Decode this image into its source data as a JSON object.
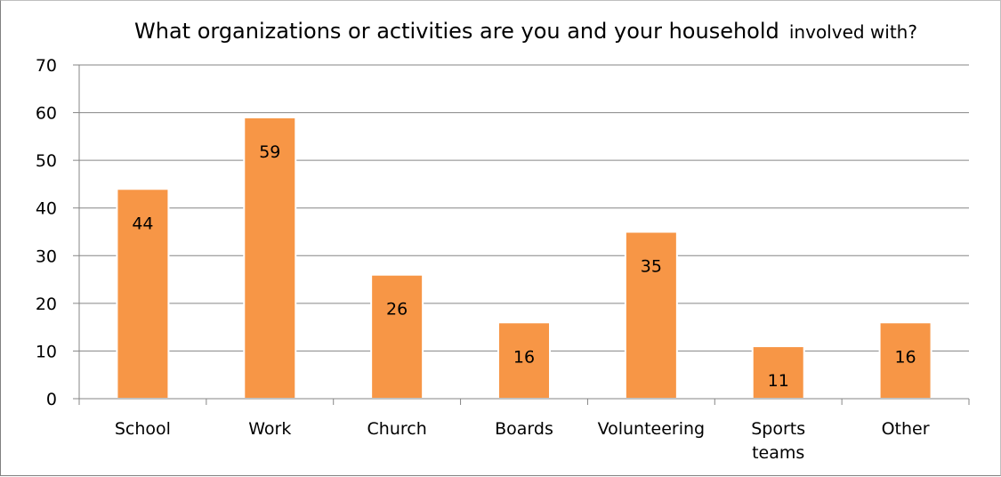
{
  "chart_data": {
    "type": "bar",
    "title": "What organizations or activities are you and your household",
    "title_small": "involved with?",
    "categories": [
      "School",
      "Work",
      "Church",
      "Boards",
      "Volunteering",
      [
        "Sports",
        "teams"
      ],
      "Other"
    ],
    "values": [
      44,
      59,
      26,
      16,
      35,
      11,
      16
    ],
    "ylim": [
      0,
      70
    ],
    "yticks": [
      0,
      10,
      20,
      30,
      40,
      50,
      60,
      70
    ],
    "grid": true,
    "legend": "none",
    "data_labels": true,
    "bar_color": "#F79646",
    "bar_edge_color": "#FFFFFF",
    "gridline_color": "#868686"
  }
}
